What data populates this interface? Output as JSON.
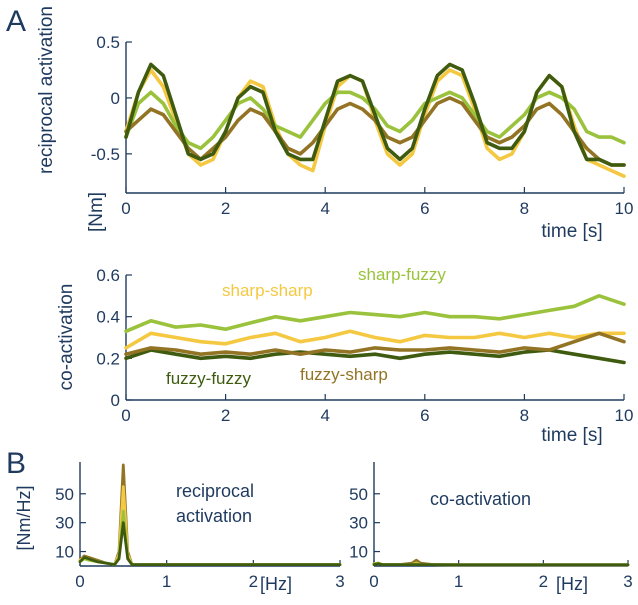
{
  "panel_labels": {
    "a": "A",
    "b": "B"
  },
  "colors": {
    "sharp_sharp": "#f5c842",
    "sharp_fuzzy": "#9bc23c",
    "fuzzy_fuzzy": "#3f5b0f",
    "fuzzy_sharp": "#927424",
    "axis": "#1f3a5f"
  },
  "chart_data": [
    {
      "id": "reciprocal-activation-time",
      "type": "line",
      "title": "",
      "ylabel": "reciprocal activation",
      "yunit": "[Nm]",
      "xlabel": "time [s]",
      "xlim": [
        0,
        10
      ],
      "ylim": [
        -0.85,
        0.5
      ],
      "xticks": [
        "0",
        "2",
        "4",
        "6",
        "8",
        "10"
      ],
      "yticks": [
        "0.5",
        "0",
        "-0.5"
      ],
      "series": [
        {
          "key": "sharp_sharp",
          "x": [
            0,
            0.25,
            0.5,
            0.75,
            1,
            1.25,
            1.5,
            1.75,
            2,
            2.25,
            2.5,
            2.75,
            3,
            3.25,
            3.5,
            3.75,
            4,
            4.25,
            4.5,
            4.75,
            5,
            5.25,
            5.5,
            5.75,
            6,
            6.25,
            6.5,
            6.75,
            7,
            7.25,
            7.5,
            7.75,
            8,
            8.25,
            8.5,
            8.75,
            9,
            9.25,
            9.5,
            9.75,
            10
          ],
          "values": [
            -0.3,
            0.05,
            0.25,
            0.1,
            -0.2,
            -0.5,
            -0.6,
            -0.55,
            -0.3,
            0.0,
            0.15,
            0.1,
            -0.25,
            -0.5,
            -0.6,
            -0.65,
            -0.25,
            0.1,
            0.2,
            0.15,
            -0.2,
            -0.5,
            -0.6,
            -0.5,
            -0.15,
            0.15,
            0.25,
            0.2,
            -0.1,
            -0.45,
            -0.55,
            -0.5,
            -0.3,
            0.05,
            0.2,
            0.1,
            -0.25,
            -0.55,
            -0.6,
            -0.65,
            -0.7
          ]
        },
        {
          "key": "sharp_fuzzy",
          "x": [
            0,
            0.25,
            0.5,
            0.75,
            1,
            1.25,
            1.5,
            1.75,
            2,
            2.25,
            2.5,
            2.75,
            3,
            3.25,
            3.5,
            3.75,
            4,
            4.25,
            4.5,
            4.75,
            5,
            5.25,
            5.5,
            5.75,
            6,
            6.25,
            6.5,
            6.75,
            7,
            7.25,
            7.5,
            7.75,
            8,
            8.25,
            8.5,
            8.75,
            9,
            9.25,
            9.5,
            9.75,
            10
          ],
          "values": [
            -0.35,
            -0.05,
            0.05,
            -0.05,
            -0.25,
            -0.4,
            -0.45,
            -0.35,
            -0.2,
            -0.05,
            0.0,
            -0.1,
            -0.25,
            -0.3,
            -0.35,
            -0.2,
            -0.05,
            0.05,
            0.05,
            0.0,
            -0.1,
            -0.25,
            -0.3,
            -0.2,
            -0.05,
            0.0,
            0.05,
            0.0,
            -0.15,
            -0.3,
            -0.35,
            -0.25,
            -0.15,
            0.0,
            0.05,
            0.0,
            -0.1,
            -0.3,
            -0.35,
            -0.35,
            -0.4
          ]
        },
        {
          "key": "fuzzy_sharp",
          "x": [
            0,
            0.25,
            0.5,
            0.75,
            1,
            1.25,
            1.5,
            1.75,
            2,
            2.25,
            2.5,
            2.75,
            3,
            3.25,
            3.5,
            3.75,
            4,
            4.25,
            4.5,
            4.75,
            5,
            5.25,
            5.5,
            5.75,
            6,
            6.25,
            6.5,
            6.75,
            7,
            7.25,
            7.5,
            7.75,
            8,
            8.25,
            8.5,
            8.75,
            9,
            9.25,
            9.5,
            9.75,
            10
          ],
          "values": [
            -0.3,
            -0.2,
            -0.1,
            -0.15,
            -0.3,
            -0.45,
            -0.55,
            -0.45,
            -0.35,
            -0.2,
            -0.1,
            -0.15,
            -0.3,
            -0.45,
            -0.5,
            -0.4,
            -0.25,
            -0.1,
            -0.05,
            -0.1,
            -0.2,
            -0.35,
            -0.4,
            -0.35,
            -0.2,
            -0.05,
            0.0,
            -0.05,
            -0.2,
            -0.35,
            -0.4,
            -0.35,
            -0.25,
            -0.1,
            -0.05,
            -0.15,
            -0.3,
            -0.45,
            -0.55,
            -0.6,
            -0.6
          ]
        },
        {
          "key": "fuzzy_fuzzy",
          "x": [
            0,
            0.25,
            0.5,
            0.75,
            1,
            1.25,
            1.5,
            1.75,
            2,
            2.25,
            2.5,
            2.75,
            3,
            3.25,
            3.5,
            3.75,
            4,
            4.25,
            4.5,
            4.75,
            5,
            5.25,
            5.5,
            5.75,
            6,
            6.25,
            6.5,
            6.75,
            7,
            7.25,
            7.5,
            7.75,
            8,
            8.25,
            8.5,
            8.75,
            9,
            9.25,
            9.5,
            9.75,
            10
          ],
          "values": [
            -0.35,
            0.05,
            0.3,
            0.2,
            -0.15,
            -0.5,
            -0.55,
            -0.5,
            -0.3,
            0.0,
            0.1,
            0.05,
            -0.3,
            -0.5,
            -0.55,
            -0.55,
            -0.2,
            0.15,
            0.2,
            0.15,
            -0.15,
            -0.45,
            -0.55,
            -0.45,
            -0.1,
            0.2,
            0.3,
            0.25,
            -0.05,
            -0.4,
            -0.45,
            -0.45,
            -0.3,
            0.05,
            0.2,
            0.1,
            -0.3,
            -0.55,
            -0.55,
            -0.6,
            -0.6
          ]
        }
      ]
    },
    {
      "id": "co-activation-time",
      "type": "line",
      "title": "",
      "ylabel": "co-activation",
      "xlabel": "time [s]",
      "xlim": [
        0,
        10
      ],
      "ylim": [
        0,
        0.6
      ],
      "xticks": [
        "0",
        "2",
        "4",
        "6",
        "8",
        "10"
      ],
      "yticks": [
        "0.6",
        "0.4",
        "0.2",
        "0"
      ],
      "series": [
        {
          "key": "sharp_sharp",
          "name": "sharp-sharp",
          "x": [
            0,
            0.5,
            1,
            1.5,
            2,
            2.5,
            3,
            3.5,
            4,
            4.5,
            5,
            5.5,
            6,
            6.5,
            7,
            7.5,
            8,
            8.5,
            9,
            9.5,
            10
          ],
          "values": [
            0.25,
            0.32,
            0.3,
            0.28,
            0.27,
            0.3,
            0.32,
            0.28,
            0.3,
            0.33,
            0.3,
            0.28,
            0.31,
            0.3,
            0.3,
            0.32,
            0.3,
            0.32,
            0.3,
            0.32,
            0.32
          ]
        },
        {
          "key": "sharp_fuzzy",
          "name": "sharp-fuzzy",
          "x": [
            0,
            0.5,
            1,
            1.5,
            2,
            2.5,
            3,
            3.5,
            4,
            4.5,
            5,
            5.5,
            6,
            6.5,
            7,
            7.5,
            8,
            8.5,
            9,
            9.5,
            10
          ],
          "values": [
            0.33,
            0.38,
            0.35,
            0.36,
            0.34,
            0.37,
            0.4,
            0.38,
            0.4,
            0.42,
            0.41,
            0.4,
            0.42,
            0.4,
            0.4,
            0.39,
            0.41,
            0.43,
            0.45,
            0.5,
            0.46
          ]
        },
        {
          "key": "fuzzy_fuzzy",
          "name": "fuzzy-fuzzy",
          "x": [
            0,
            0.5,
            1,
            1.5,
            2,
            2.5,
            3,
            3.5,
            4,
            4.5,
            5,
            5.5,
            6,
            6.5,
            7,
            7.5,
            8,
            8.5,
            9,
            9.5,
            10
          ],
          "values": [
            0.2,
            0.24,
            0.22,
            0.2,
            0.21,
            0.2,
            0.22,
            0.23,
            0.22,
            0.21,
            0.22,
            0.2,
            0.22,
            0.23,
            0.22,
            0.21,
            0.23,
            0.24,
            0.22,
            0.2,
            0.18
          ]
        },
        {
          "key": "fuzzy_sharp",
          "name": "fuzzy-sharp",
          "x": [
            0,
            0.5,
            1,
            1.5,
            2,
            2.5,
            3,
            3.5,
            4,
            4.5,
            5,
            5.5,
            6,
            6.5,
            7,
            7.5,
            8,
            8.5,
            9,
            9.5,
            10
          ],
          "values": [
            0.22,
            0.25,
            0.24,
            0.22,
            0.23,
            0.22,
            0.24,
            0.22,
            0.24,
            0.23,
            0.25,
            0.24,
            0.24,
            0.25,
            0.24,
            0.23,
            0.25,
            0.24,
            0.28,
            0.32,
            0.28
          ]
        }
      ]
    },
    {
      "id": "reciprocal-activation-spectrum",
      "type": "line",
      "title": "reciprocal activation",
      "ylabel": "[Nm/Hz]",
      "xlabel": "[Hz]",
      "xlim": [
        0,
        3
      ],
      "ylim": [
        0,
        72
      ],
      "xticks": [
        "0",
        "1",
        "2",
        "3"
      ],
      "yticks": [
        "50",
        "30",
        "10"
      ],
      "series": [
        {
          "key": "fuzzy_sharp",
          "x": [
            0,
            0.05,
            0.1,
            0.2,
            0.3,
            0.4,
            0.45,
            0.5,
            0.55,
            0.6,
            0.7,
            0.8,
            1,
            1.5,
            2,
            2.5,
            3
          ],
          "values": [
            4,
            7,
            6,
            4,
            2,
            1,
            10,
            70,
            10,
            1,
            1,
            1,
            1,
            1,
            1,
            1,
            1
          ]
        },
        {
          "key": "sharp_sharp",
          "x": [
            0,
            0.05,
            0.1,
            0.2,
            0.3,
            0.4,
            0.45,
            0.5,
            0.55,
            0.6,
            0.7,
            0.8,
            1,
            1.5,
            2,
            2.5,
            3
          ],
          "values": [
            4,
            6,
            5,
            3,
            2,
            1,
            8,
            55,
            8,
            1,
            1,
            1,
            1,
            1,
            1,
            1,
            1
          ]
        },
        {
          "key": "sharp_fuzzy",
          "x": [
            0,
            0.05,
            0.1,
            0.2,
            0.3,
            0.4,
            0.45,
            0.5,
            0.55,
            0.6,
            0.7,
            0.8,
            1,
            1.5,
            2,
            2.5,
            3
          ],
          "values": [
            3,
            5,
            4,
            3,
            2,
            1,
            6,
            38,
            6,
            1,
            1,
            1,
            1,
            1,
            1,
            1,
            1
          ]
        },
        {
          "key": "fuzzy_fuzzy",
          "x": [
            0,
            0.05,
            0.1,
            0.2,
            0.3,
            0.4,
            0.45,
            0.5,
            0.55,
            0.6,
            0.7,
            0.8,
            1,
            1.5,
            2,
            2.5,
            3
          ],
          "values": [
            3,
            6,
            5,
            3,
            2,
            1,
            5,
            30,
            5,
            1,
            1,
            1,
            1,
            1,
            1,
            1,
            1
          ]
        }
      ]
    },
    {
      "id": "co-activation-spectrum",
      "type": "line",
      "title": "co-activation",
      "ylabel": "",
      "xlabel": "[Hz]",
      "xlim": [
        0,
        3
      ],
      "ylim": [
        0,
        72
      ],
      "xticks": [
        "0",
        "1",
        "2",
        "3"
      ],
      "yticks": [
        "50",
        "30",
        "10"
      ],
      "series": [
        {
          "key": "fuzzy_sharp",
          "x": [
            0,
            0.05,
            0.1,
            0.3,
            0.45,
            0.5,
            0.55,
            0.7,
            1,
            2,
            3
          ],
          "values": [
            1.5,
            2,
            1,
            1,
            2,
            4,
            2,
            1,
            0.8,
            0.8,
            0.8
          ]
        },
        {
          "key": "sharp_sharp",
          "x": [
            0,
            0.05,
            0.1,
            0.3,
            0.45,
            0.5,
            0.55,
            0.7,
            1,
            2,
            3
          ],
          "values": [
            1.5,
            2,
            1,
            1,
            1,
            2,
            1,
            1,
            0.8,
            0.8,
            0.8
          ]
        },
        {
          "key": "sharp_fuzzy",
          "x": [
            0,
            0.05,
            0.1,
            0.3,
            0.45,
            0.5,
            0.55,
            0.7,
            1,
            2,
            3
          ],
          "values": [
            1.5,
            2,
            1,
            1,
            1,
            1.5,
            1,
            1,
            0.8,
            0.8,
            0.8
          ]
        },
        {
          "key": "fuzzy_fuzzy",
          "x": [
            0,
            0.05,
            0.1,
            0.3,
            0.45,
            0.5,
            0.55,
            0.7,
            1,
            2,
            3
          ],
          "values": [
            1,
            1.5,
            1,
            1,
            1,
            1,
            1,
            1,
            0.8,
            0.8,
            0.8
          ]
        }
      ]
    }
  ]
}
